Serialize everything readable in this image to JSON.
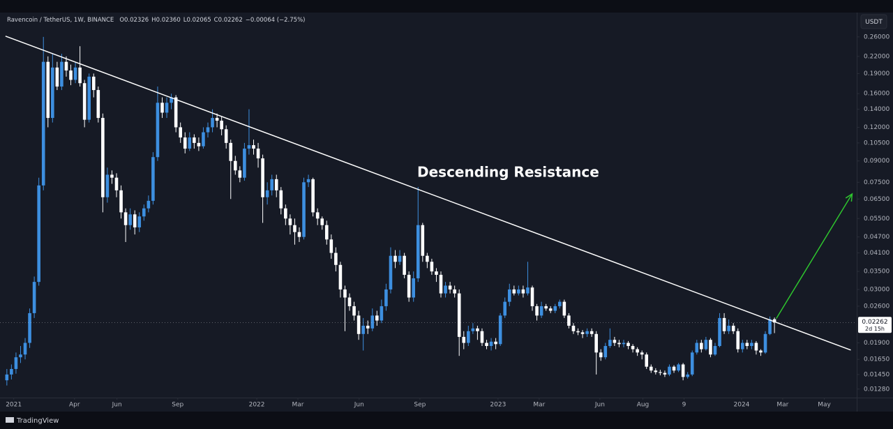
{
  "chart_data": {
    "type": "candlestick",
    "symbol": "Ravencoin / TetherUS, 1W, BINANCE",
    "ohlc_legend": [
      {
        "key": "O",
        "text": "0.02326"
      },
      {
        "key": "H",
        "text": "0.02360"
      },
      {
        "key": "L",
        "text": "0.02065"
      },
      {
        "key": "C",
        "text": "0.02262"
      }
    ],
    "change": "−0.00064 (−2.75%)",
    "currency": "USDT",
    "yscale": "log",
    "grid": false,
    "ylim": [
      0.0119,
      0.32
    ],
    "yticks": [
      {
        "value": 0.26,
        "label": "0.26000"
      },
      {
        "value": 0.22,
        "label": "0.22000"
      },
      {
        "value": 0.19,
        "label": "0.19000"
      },
      {
        "value": 0.16,
        "label": "0.16000"
      },
      {
        "value": 0.14,
        "label": "0.14000"
      },
      {
        "value": 0.12,
        "label": "0.12000"
      },
      {
        "value": 0.105,
        "label": "0.10500"
      },
      {
        "value": 0.09,
        "label": "0.09000"
      },
      {
        "value": 0.075,
        "label": "0.07500"
      },
      {
        "value": 0.065,
        "label": "0.06500"
      },
      {
        "value": 0.055,
        "label": "0.05500"
      },
      {
        "value": 0.047,
        "label": "0.04700"
      },
      {
        "value": 0.041,
        "label": "0.04100"
      },
      {
        "value": 0.035,
        "label": "0.03500"
      },
      {
        "value": 0.03,
        "label": "0.03000"
      },
      {
        "value": 0.026,
        "label": "0.02600"
      },
      {
        "value": 0.019,
        "label": "0.01900"
      },
      {
        "value": 0.0165,
        "label": "0.01650"
      },
      {
        "value": 0.0145,
        "label": "0.01450"
      },
      {
        "value": 0.0128,
        "label": "0.01280"
      }
    ],
    "xlim": [
      -1.5,
      186
    ],
    "xticks": [
      {
        "value": 1.5,
        "label": "2021"
      },
      {
        "value": 14.8,
        "label": "Apr"
      },
      {
        "value": 24.1,
        "label": "Jun"
      },
      {
        "value": 37.4,
        "label": "Sep"
      },
      {
        "value": 54.7,
        "label": "2022"
      },
      {
        "value": 63.7,
        "label": "Mar"
      },
      {
        "value": 77.1,
        "label": "Jun"
      },
      {
        "value": 90.4,
        "label": "Sep"
      },
      {
        "value": 107.5,
        "label": "2023"
      },
      {
        "value": 116.5,
        "label": "Mar"
      },
      {
        "value": 129.8,
        "label": "Jun"
      },
      {
        "value": 139.2,
        "label": "Aug"
      },
      {
        "value": 148.2,
        "label": "9"
      },
      {
        "value": 160.8,
        "label": "2024"
      },
      {
        "value": 169.8,
        "label": "Mar"
      },
      {
        "value": 178.9,
        "label": "May"
      }
    ],
    "up_color": "#3d8fe0",
    "down_color": "#ffffff",
    "open": [
      0.0138,
      0.0145,
      0.0152,
      0.0168,
      0.0172,
      0.019,
      0.0245,
      0.032,
      0.073,
      0.21,
      0.13,
      0.2,
      0.17,
      0.21,
      0.195,
      0.18,
      0.2,
      0.175,
      0.128,
      0.185,
      0.165,
      0.13,
      0.066,
      0.08,
      0.078,
      0.07,
      0.058,
      0.052,
      0.057,
      0.051,
      0.056,
      0.06,
      0.064,
      0.093,
      0.148,
      0.136,
      0.148,
      0.155,
      0.12,
      0.11,
      0.1,
      0.11,
      0.105,
      0.102,
      0.115,
      0.12,
      0.13,
      0.127,
      0.118,
      0.105,
      0.09,
      0.083,
      0.078,
      0.1,
      0.103,
      0.1,
      0.092,
      0.066,
      0.07,
      0.077,
      0.07,
      0.06,
      0.055,
      0.052,
      0.049,
      0.047,
      0.075,
      0.077,
      0.058,
      0.055,
      0.052,
      0.046,
      0.041,
      0.037,
      0.03,
      0.028,
      0.026,
      0.024,
      0.0205,
      0.022,
      0.0215,
      0.024,
      0.023,
      0.026,
      0.03,
      0.04,
      0.038,
      0.04,
      0.034,
      0.028,
      0.033,
      0.052,
      0.04,
      0.038,
      0.035,
      0.034,
      0.029,
      0.031,
      0.03,
      0.029,
      0.02,
      0.019,
      0.021,
      0.0215,
      0.021,
      0.019,
      0.0185,
      0.0192,
      0.0188,
      0.024,
      0.027,
      0.03,
      0.029,
      0.03,
      0.029,
      0.0305,
      0.026,
      0.024,
      0.026,
      0.0255,
      0.025,
      0.026,
      0.027,
      0.024,
      0.022,
      0.021,
      0.0208,
      0.0205,
      0.021,
      0.0205,
      0.0175,
      0.0168,
      0.0185,
      0.0195,
      0.019,
      0.0188,
      0.019,
      0.0185,
      0.018,
      0.0175,
      0.0172,
      0.0155,
      0.015,
      0.0148,
      0.0147,
      0.0145,
      0.0155,
      0.015,
      0.0158,
      0.0142,
      0.0145,
      0.0175,
      0.019,
      0.018,
      0.0195,
      0.0172,
      0.0185,
      0.0235,
      0.021,
      0.022,
      0.021,
      0.018,
      0.019,
      0.0185,
      0.019,
      0.0178,
      0.0175,
      0.0205,
      0.02326
    ],
    "high": [
      0.0152,
      0.0158,
      0.0175,
      0.0185,
      0.0198,
      0.0255,
      0.0335,
      0.078,
      0.26,
      0.22,
      0.225,
      0.21,
      0.225,
      0.22,
      0.205,
      0.21,
      0.24,
      0.18,
      0.19,
      0.19,
      0.17,
      0.135,
      0.085,
      0.083,
      0.081,
      0.073,
      0.06,
      0.06,
      0.059,
      0.058,
      0.062,
      0.067,
      0.097,
      0.17,
      0.155,
      0.155,
      0.16,
      0.158,
      0.125,
      0.115,
      0.115,
      0.113,
      0.11,
      0.12,
      0.125,
      0.14,
      0.135,
      0.132,
      0.122,
      0.108,
      0.094,
      0.086,
      0.105,
      0.14,
      0.108,
      0.105,
      0.095,
      0.075,
      0.08,
      0.08,
      0.072,
      0.062,
      0.057,
      0.055,
      0.051,
      0.078,
      0.08,
      0.078,
      0.06,
      0.056,
      0.054,
      0.048,
      0.043,
      0.038,
      0.031,
      0.029,
      0.027,
      0.025,
      0.0235,
      0.023,
      0.0255,
      0.025,
      0.0275,
      0.0315,
      0.043,
      0.042,
      0.042,
      0.041,
      0.035,
      0.035,
      0.072,
      0.053,
      0.041,
      0.039,
      0.036,
      0.035,
      0.032,
      0.032,
      0.031,
      0.03,
      0.021,
      0.022,
      0.0225,
      0.022,
      0.0215,
      0.0195,
      0.0198,
      0.0198,
      0.0245,
      0.028,
      0.0315,
      0.031,
      0.031,
      0.031,
      0.038,
      0.031,
      0.0265,
      0.027,
      0.0265,
      0.026,
      0.0265,
      0.0275,
      0.0275,
      0.0245,
      0.0225,
      0.0215,
      0.0212,
      0.0215,
      0.0215,
      0.021,
      0.018,
      0.019,
      0.0215,
      0.02,
      0.0195,
      0.0195,
      0.0193,
      0.0188,
      0.0183,
      0.0178,
      0.0175,
      0.0158,
      0.0153,
      0.0151,
      0.015,
      0.0158,
      0.0157,
      0.016,
      0.016,
      0.0148,
      0.0178,
      0.0195,
      0.0195,
      0.02,
      0.0198,
      0.019,
      0.0245,
      0.0245,
      0.0232,
      0.0225,
      0.0215,
      0.0195,
      0.0195,
      0.0195,
      0.0193,
      0.018,
      0.021,
      0.0238,
      0.0236
    ],
    "low": [
      0.0132,
      0.0139,
      0.0146,
      0.016,
      0.0165,
      0.0182,
      0.0235,
      0.031,
      0.07,
      0.12,
      0.125,
      0.165,
      0.165,
      0.185,
      0.172,
      0.175,
      0.17,
      0.12,
      0.125,
      0.155,
      0.125,
      0.058,
      0.063,
      0.074,
      0.066,
      0.055,
      0.045,
      0.05,
      0.048,
      0.049,
      0.054,
      0.058,
      0.062,
      0.09,
      0.13,
      0.13,
      0.14,
      0.115,
      0.105,
      0.096,
      0.098,
      0.1,
      0.098,
      0.1,
      0.11,
      0.115,
      0.12,
      0.112,
      0.1,
      0.065,
      0.08,
      0.075,
      0.076,
      0.095,
      0.095,
      0.085,
      0.053,
      0.062,
      0.067,
      0.066,
      0.057,
      0.052,
      0.048,
      0.044,
      0.045,
      0.046,
      0.072,
      0.056,
      0.052,
      0.05,
      0.044,
      0.039,
      0.035,
      0.028,
      0.021,
      0.025,
      0.023,
      0.0195,
      0.0178,
      0.0205,
      0.021,
      0.022,
      0.0225,
      0.025,
      0.029,
      0.036,
      0.037,
      0.033,
      0.027,
      0.027,
      0.032,
      0.038,
      0.036,
      0.034,
      0.032,
      0.028,
      0.028,
      0.029,
      0.028,
      0.017,
      0.018,
      0.0185,
      0.0205,
      0.0195,
      0.0185,
      0.018,
      0.0178,
      0.018,
      0.0185,
      0.0235,
      0.026,
      0.0285,
      0.0285,
      0.028,
      0.0285,
      0.025,
      0.023,
      0.0235,
      0.025,
      0.0245,
      0.0245,
      0.0255,
      0.0235,
      0.0215,
      0.0205,
      0.0203,
      0.0198,
      0.02,
      0.02,
      0.0145,
      0.0163,
      0.0165,
      0.0182,
      0.0185,
      0.0183,
      0.0183,
      0.018,
      0.0175,
      0.017,
      0.0165,
      0.0152,
      0.0147,
      0.0145,
      0.0144,
      0.0142,
      0.0143,
      0.0147,
      0.0148,
      0.0138,
      0.014,
      0.0143,
      0.0172,
      0.0175,
      0.0178,
      0.0168,
      0.017,
      0.0183,
      0.0205,
      0.0205,
      0.0205,
      0.0175,
      0.0175,
      0.018,
      0.018,
      0.0172,
      0.017,
      0.0173,
      0.0203,
      0.02065
    ],
    "close": [
      0.0145,
      0.0152,
      0.0168,
      0.0172,
      0.019,
      0.0245,
      0.032,
      0.073,
      0.21,
      0.13,
      0.2,
      0.17,
      0.21,
      0.195,
      0.18,
      0.2,
      0.175,
      0.128,
      0.185,
      0.165,
      0.13,
      0.066,
      0.08,
      0.078,
      0.07,
      0.058,
      0.052,
      0.057,
      0.051,
      0.056,
      0.06,
      0.064,
      0.093,
      0.148,
      0.136,
      0.148,
      0.155,
      0.12,
      0.11,
      0.1,
      0.11,
      0.105,
      0.102,
      0.115,
      0.12,
      0.13,
      0.127,
      0.118,
      0.105,
      0.09,
      0.083,
      0.078,
      0.1,
      0.103,
      0.1,
      0.092,
      0.066,
      0.07,
      0.077,
      0.07,
      0.06,
      0.055,
      0.052,
      0.049,
      0.047,
      0.075,
      0.077,
      0.058,
      0.055,
      0.052,
      0.046,
      0.041,
      0.037,
      0.03,
      0.028,
      0.026,
      0.024,
      0.0205,
      0.022,
      0.0215,
      0.024,
      0.023,
      0.026,
      0.03,
      0.04,
      0.038,
      0.04,
      0.034,
      0.028,
      0.033,
      0.052,
      0.04,
      0.038,
      0.035,
      0.034,
      0.029,
      0.031,
      0.03,
      0.029,
      0.02,
      0.019,
      0.021,
      0.0215,
      0.021,
      0.019,
      0.0185,
      0.0192,
      0.0188,
      0.024,
      0.027,
      0.03,
      0.029,
      0.03,
      0.029,
      0.0305,
      0.026,
      0.024,
      0.026,
      0.0255,
      0.025,
      0.026,
      0.027,
      0.024,
      0.022,
      0.021,
      0.0208,
      0.0205,
      0.021,
      0.0205,
      0.0175,
      0.0168,
      0.0185,
      0.0195,
      0.019,
      0.0188,
      0.019,
      0.0185,
      0.018,
      0.0175,
      0.0172,
      0.0155,
      0.015,
      0.0148,
      0.0147,
      0.0145,
      0.0155,
      0.015,
      0.0158,
      0.0142,
      0.0145,
      0.0175,
      0.019,
      0.018,
      0.0195,
      0.0172,
      0.0185,
      0.0235,
      0.021,
      0.022,
      0.021,
      0.018,
      0.019,
      0.0185,
      0.019,
      0.0178,
      0.0175,
      0.0205,
      0.02326,
      0.02262
    ],
    "last_price": 0.02262,
    "countdown": "2d 15h",
    "annotation": "Descending Resistance",
    "trendline": {
      "x": [
        -0.3,
        184.7
      ],
      "y": [
        0.2615,
        0.01787
      ],
      "color": "#ffffff"
    },
    "arrow": {
      "x": [
        168.4,
        185.0
      ],
      "y": [
        0.0234,
        0.0679
      ],
      "color": "#2ec52e"
    }
  },
  "footer": "TradingView"
}
